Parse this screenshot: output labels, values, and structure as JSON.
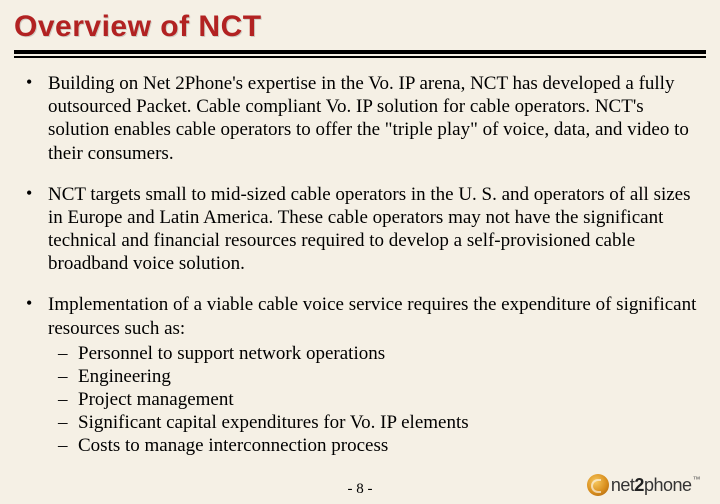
{
  "slide": {
    "title": "Overview of NCT",
    "bullets": [
      {
        "text": "Building on Net 2Phone's expertise in the Vo. IP arena, NCT has developed a fully outsourced Packet. Cable compliant Vo. IP solution for cable operators. NCT's solution enables cable operators to offer the \"triple play\" of voice, data, and video to their consumers."
      },
      {
        "text": "NCT targets small to mid-sized cable operators in the U. S. and operators of all sizes in Europe and Latin America.  These cable operators may not have the significant technical and financial resources required to develop a self-provisioned cable broadband voice solution."
      },
      {
        "text": "Implementation of a viable cable voice service requires the expenditure of significant resources such as:",
        "sub": [
          "Personnel to support network operations",
          "Engineering",
          "Project management",
          "Significant capital expenditures for Vo. IP elements",
          "Costs to manage interconnection process"
        ]
      }
    ],
    "page_number": "- 8 -",
    "logo": {
      "prefix": "net",
      "bold": "2",
      "suffix": "phone",
      "tm": "™"
    },
    "colors": {
      "title_color": "#b22222",
      "background": "#f5f0e5",
      "text_color": "#000000"
    }
  }
}
